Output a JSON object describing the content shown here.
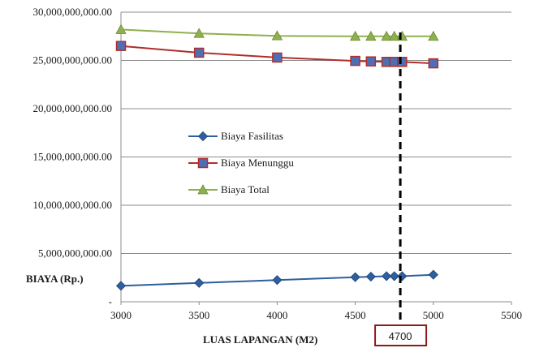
{
  "chart_data": {
    "type": "line",
    "title": "",
    "xlabel": "LUAS LAPANGAN (M2)",
    "ylabel": "BIAYA  (Rp.)",
    "xlim": [
      3000,
      5500
    ],
    "ylim": [
      0,
      30000000000
    ],
    "x_ticks": [
      "3000",
      "3500",
      "4000",
      "4500",
      "5000",
      "5500"
    ],
    "y_ticks": [
      "-",
      "5,000,000,000.00",
      "10,000,000,000.00",
      "15,000,000,000.00",
      "20,000,000,000.00",
      "25,000,000,000.00",
      "30,000,000,000.00"
    ],
    "grid": "horizontal",
    "legend_position": "center-left",
    "series": [
      {
        "name": "Biaya Fasilitas",
        "color": "#2e5f9e",
        "marker": "diamond",
        "x": [
          3000,
          3500,
          4000,
          4500,
          4600,
          4700,
          4750,
          4800,
          5000
        ],
        "values": [
          1650000000,
          1950000000,
          2250000000,
          2550000000,
          2600000000,
          2650000000,
          2650000000,
          2650000000,
          2800000000
        ]
      },
      {
        "name": "Biaya Menunggu",
        "color": "#b02e2c",
        "marker_fill": "#4f6fb5",
        "marker": "square",
        "x": [
          3000,
          3500,
          4000,
          4500,
          4600,
          4700,
          4750,
          4800,
          5000
        ],
        "values": [
          26500000000,
          25800000000,
          25300000000,
          24950000000,
          24900000000,
          24850000000,
          24850000000,
          24850000000,
          24700000000
        ]
      },
      {
        "name": "Biaya Total",
        "color": "#8fb04e",
        "marker": "triangle",
        "x": [
          3000,
          3500,
          4000,
          4500,
          4600,
          4700,
          4750,
          4800,
          5000
        ],
        "values": [
          28200000000,
          27800000000,
          27550000000,
          27500000000,
          27500000000,
          27500000000,
          27500000000,
          27500000000,
          27500000000
        ]
      }
    ],
    "annotation": {
      "label": "4700",
      "x": 4700,
      "style": "dashed-vertical-line",
      "box_color": "#8b1a1a"
    }
  }
}
